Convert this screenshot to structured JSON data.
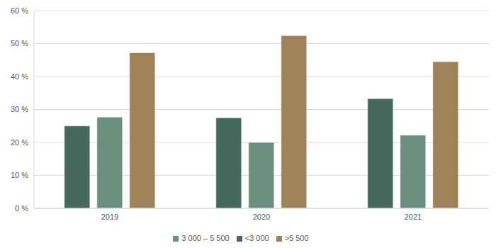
{
  "chart_data": {
    "type": "bar",
    "categories": [
      "2019",
      "2020",
      "2021"
    ],
    "series": [
      {
        "name": "<3 000",
        "color": "#46695d",
        "values": [
          25,
          27.5,
          33.3
        ]
      },
      {
        "name": "3 000 – 5 500",
        "color": "#6a9082",
        "values": [
          27.7,
          20,
          22.2
        ]
      },
      {
        "name": ">5 500",
        "color": "#a08259",
        "values": [
          47.2,
          52.4,
          44.5
        ]
      }
    ],
    "ylim": [
      0,
      60
    ],
    "yticks": [
      {
        "value": 0,
        "label": "0 %"
      },
      {
        "value": 10,
        "label": "10 %"
      },
      {
        "value": 20,
        "label": "20 %"
      },
      {
        "value": 30,
        "label": "30 %"
      },
      {
        "value": 40,
        "label": "40 %"
      },
      {
        "value": 50,
        "label": "50 %"
      },
      {
        "value": 60,
        "label": "60 %"
      }
    ],
    "grid": true,
    "legend": "bottom"
  }
}
